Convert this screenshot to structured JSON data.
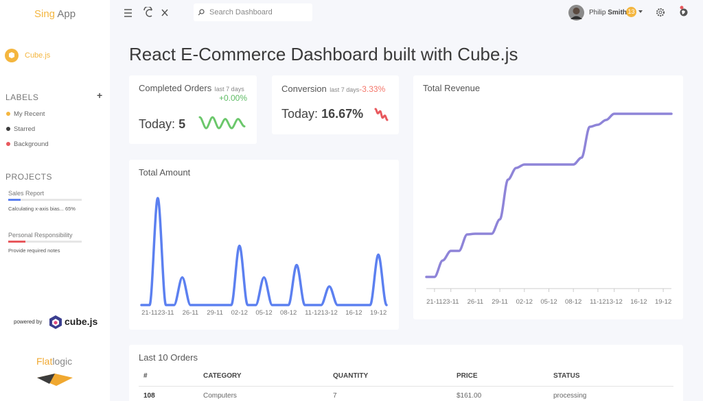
{
  "sidebar": {
    "brand_a": "Sing",
    "brand_b": "App",
    "nav_item": "Cube.js",
    "labels_heading": "LABELS",
    "labels_add": "+",
    "labels": [
      {
        "name": "My Recent",
        "color": "#f4b63f"
      },
      {
        "name": "Starred",
        "color": "#3c3c3c"
      },
      {
        "name": "Background",
        "color": "#e8585d"
      }
    ],
    "projects_heading": "PROJECTS",
    "projects": [
      {
        "name": "Sales Report",
        "note": "Calculating x-axis bias... 65%",
        "progress": 17,
        "color": "#5c80f0"
      },
      {
        "name": "Personal Responsibility",
        "note": "Provide required notes",
        "progress": 23,
        "color": "#e8585d"
      }
    ],
    "powered_by": "powered by",
    "cube": "cube.js",
    "flatlogic_a": "Flat",
    "flatlogic_b": "logic"
  },
  "header": {
    "search": "Search Dashboard",
    "user_first": "Philip",
    "user_last": "Smith",
    "badge": "13"
  },
  "title": "React E-Commerce Dashboard built with Cube.js",
  "cards": {
    "completed": {
      "title": "Completed Orders",
      "period": "last 7 days",
      "change": "+0.00%",
      "today": "Today:",
      "value": "5"
    },
    "conversion": {
      "title": "Conversion",
      "period": "last 7 days",
      "change": "-3.33%",
      "today": "Today:",
      "value": "16.67%"
    }
  },
  "chart_data": [
    {
      "type": "line",
      "values": [
        8,
        2,
        8,
        2,
        7,
        2,
        7,
        3
      ],
      "color": "#6bc76b"
    },
    {
      "type": "line",
      "values": [
        10,
        6,
        8,
        2,
        4,
        0
      ],
      "color": "#e8585d"
    },
    {
      "type": "line",
      "title": "Total Amount",
      "color": "#5c80f0",
      "categories": [
        null,
        "21-11",
        null,
        "23-11",
        null,
        null,
        "26-11",
        null,
        null,
        "29-11",
        null,
        null,
        "02-12",
        null,
        null,
        "05-12",
        null,
        null,
        "08-12",
        null,
        null,
        "11-12",
        null,
        "13-12",
        null,
        null,
        "16-12",
        null,
        null,
        "19-12",
        null
      ],
      "values": [
        0,
        0,
        155,
        0,
        0,
        40,
        0,
        0,
        0,
        0,
        0,
        0,
        86,
        0,
        0,
        40,
        0,
        0,
        0,
        58,
        0,
        0,
        0,
        27,
        0,
        0,
        0,
        0,
        0,
        73,
        0
      ]
    },
    {
      "type": "line",
      "title": "Total Revenue",
      "color": "#8e84d8",
      "categories": [
        null,
        "21-11",
        null,
        "23-11",
        null,
        null,
        "26-11",
        null,
        null,
        "29-11",
        null,
        null,
        "02-12",
        null,
        null,
        "05-12",
        null,
        null,
        "08-12",
        null,
        null,
        "11-12",
        null,
        "13-12",
        null,
        null,
        "16-12",
        null,
        null,
        "19-12",
        null
      ],
      "values": [
        16,
        16,
        40,
        54,
        54,
        78,
        79,
        79,
        79,
        100,
        158,
        175,
        180,
        180,
        180,
        180,
        180,
        180,
        180,
        190,
        235,
        238,
        245,
        254,
        254,
        254,
        254,
        254,
        254,
        254,
        254
      ]
    }
  ],
  "table": {
    "title": "Last 10 Orders",
    "headers": [
      "#",
      "CATEGORY",
      "QUANTITY",
      "PRICE",
      "STATUS"
    ],
    "rows": [
      [
        "108",
        "Computers",
        "7",
        "$161.00",
        "processing"
      ]
    ]
  }
}
